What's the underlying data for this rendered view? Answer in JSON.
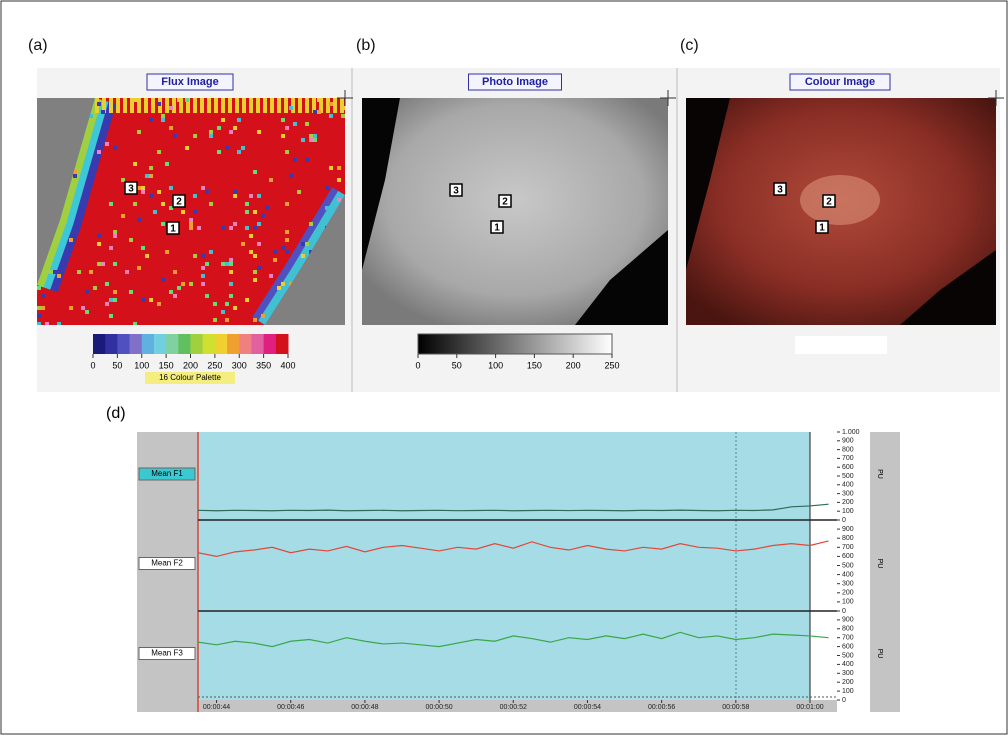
{
  "panels": [
    {
      "label": "(a)",
      "title": "Flux Image",
      "markers": [
        "1",
        "2",
        "3"
      ],
      "scale": {
        "lim": [
          0,
          400
        ],
        "ticks": [
          0,
          50,
          100,
          150,
          200,
          250,
          300,
          350,
          400
        ],
        "caption": "16 Colour Palette"
      }
    },
    {
      "label": "(b)",
      "title": "Photo Image",
      "markers": [
        "1",
        "2",
        "3"
      ],
      "scale": {
        "lim": [
          0,
          250
        ],
        "ticks": [
          0,
          50,
          100,
          150,
          200,
          250
        ]
      }
    },
    {
      "label": "(c)",
      "title": "Colour Image",
      "markers": [
        "1",
        "2",
        "3"
      ]
    }
  ],
  "trace_plot": {
    "label": "(d)",
    "xlim": [
      43.5,
      60
    ],
    "xticks": [
      {
        "value": 44,
        "label": "00:00:44"
      },
      {
        "value": 46,
        "label": "00:00:46"
      },
      {
        "value": 48,
        "label": "00:00:48"
      },
      {
        "value": 50,
        "label": "00:00:50"
      },
      {
        "value": 52,
        "label": "00:00:52"
      },
      {
        "value": 54,
        "label": "00:00:54"
      },
      {
        "value": 56,
        "label": "00:00:56"
      },
      {
        "value": 58,
        "label": "00:00:58"
      },
      {
        "value": 60,
        "label": "00:01:00"
      }
    ],
    "x": [
      43.5,
      44,
      44.5,
      45,
      45.5,
      46,
      46.5,
      47,
      47.5,
      48,
      48.5,
      49,
      49.5,
      50,
      50.5,
      51,
      51.5,
      52,
      52.5,
      53,
      53.5,
      54,
      54.5,
      55,
      55.5,
      56,
      56.5,
      57,
      57.5,
      58,
      58.5,
      59,
      59.5,
      60,
      60.5
    ],
    "unit": "PU",
    "channels": [
      {
        "name": "Mean F1",
        "color": "#2e6b5a",
        "ylim": [
          0,
          1000
        ],
        "yticks": [
          0,
          100,
          200,
          300,
          400,
          500,
          600,
          700,
          800,
          900,
          {
            "value": 1000,
            "label": "1.000"
          }
        ],
        "values": [
          110,
          105,
          110,
          108,
          105,
          110,
          108,
          112,
          105,
          108,
          110,
          105,
          108,
          110,
          106,
          108,
          110,
          105,
          108,
          110,
          107,
          110,
          108,
          105,
          110,
          108,
          112,
          108,
          105,
          110,
          108,
          115,
          150,
          160,
          180
        ]
      },
      {
        "name": "Mean F2",
        "color": "#e0483a",
        "ylim": [
          0,
          1000
        ],
        "yticks": [
          0,
          100,
          200,
          300,
          400,
          500,
          600,
          700,
          800,
          900
        ],
        "values": [
          640,
          600,
          650,
          670,
          700,
          640,
          680,
          660,
          710,
          650,
          700,
          720,
          690,
          660,
          700,
          680,
          740,
          690,
          760,
          700,
          670,
          720,
          680,
          660,
          700,
          680,
          740,
          700,
          690,
          660,
          680,
          720,
          740,
          720,
          770
        ]
      },
      {
        "name": "Mean F3",
        "color": "#3aa64a",
        "ylim": [
          0,
          1000
        ],
        "yticks": [
          0,
          100,
          200,
          300,
          400,
          500,
          600,
          700,
          800,
          900
        ],
        "values": [
          650,
          620,
          660,
          640,
          600,
          660,
          680,
          640,
          700,
          660,
          630,
          640,
          620,
          600,
          640,
          680,
          660,
          720,
          690,
          650,
          700,
          680,
          720,
          690,
          740,
          690,
          760,
          700,
          720,
          680,
          700,
          740,
          730,
          720,
          700
        ]
      }
    ]
  }
}
